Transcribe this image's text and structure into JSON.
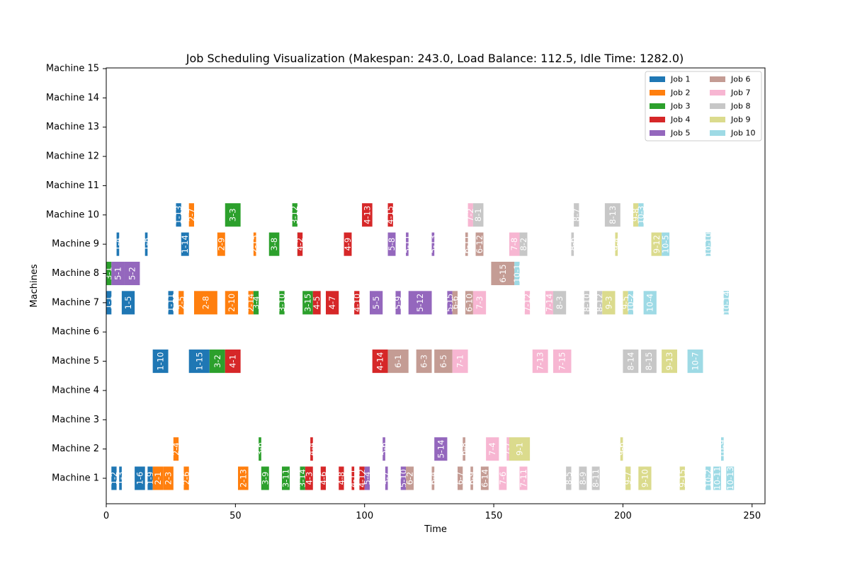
{
  "chart_data": {
    "type": "gantt",
    "title": "Job Scheduling Visualization (Makespan: 243.0, Load Balance: 112.5, Idle Time: 1282.0)",
    "xlabel": "Time",
    "ylabel": "Machines",
    "xlim": [
      0,
      255
    ],
    "xticks": [
      0,
      50,
      100,
      150,
      200,
      250
    ],
    "machines": [
      "Machine 1",
      "Machine 2",
      "Machine 3",
      "Machine 4",
      "Machine 5",
      "Machine 6",
      "Machine 7",
      "Machine 8",
      "Machine 9",
      "Machine 10",
      "Machine 11",
      "Machine 12",
      "Machine 13",
      "Machine 14",
      "Machine 15"
    ],
    "legend_position": "top-right",
    "jobs": [
      {
        "name": "Job 1",
        "color": "#1f77b4"
      },
      {
        "name": "Job 2",
        "color": "#ff7f0e"
      },
      {
        "name": "Job 3",
        "color": "#2ca02c"
      },
      {
        "name": "Job 4",
        "color": "#d62728"
      },
      {
        "name": "Job 5",
        "color": "#9467bd"
      },
      {
        "name": "Job 6",
        "color": "#c49c94"
      },
      {
        "name": "Job 7",
        "color": "#f7b6d2"
      },
      {
        "name": "Job 8",
        "color": "#c7c7c7"
      },
      {
        "name": "Job 9",
        "color": "#dbdb8d"
      },
      {
        "name": "Job 10",
        "color": "#9edae5"
      }
    ],
    "tasks": [
      {
        "machine": 1,
        "job": 1,
        "start": 2,
        "end": 4,
        "label": "1-2"
      },
      {
        "machine": 1,
        "job": 1,
        "start": 5,
        "end": 6,
        "label": "1-3"
      },
      {
        "machine": 1,
        "job": 1,
        "start": 11,
        "end": 15,
        "label": "1-6"
      },
      {
        "machine": 1,
        "job": 1,
        "start": 16,
        "end": 18,
        "label": "1-9"
      },
      {
        "machine": 1,
        "job": 2,
        "start": 18,
        "end": 22,
        "label": "2-1"
      },
      {
        "machine": 1,
        "job": 2,
        "start": 22,
        "end": 26,
        "label": "2-3"
      },
      {
        "machine": 1,
        "job": 2,
        "start": 30,
        "end": 32,
        "label": "2-6"
      },
      {
        "machine": 1,
        "job": 2,
        "start": 51,
        "end": 55,
        "label": "2-13"
      },
      {
        "machine": 1,
        "job": 3,
        "start": 60,
        "end": 63,
        "label": "3-9"
      },
      {
        "machine": 1,
        "job": 3,
        "start": 68,
        "end": 71,
        "label": "3-11"
      },
      {
        "machine": 1,
        "job": 3,
        "start": 75,
        "end": 77,
        "label": "3-14"
      },
      {
        "machine": 1,
        "job": 4,
        "start": 77,
        "end": 80,
        "label": "4-3"
      },
      {
        "machine": 1,
        "job": 4,
        "start": 83,
        "end": 85,
        "label": "4-6"
      },
      {
        "machine": 1,
        "job": 4,
        "start": 90,
        "end": 92,
        "label": "4-8"
      },
      {
        "machine": 1,
        "job": 4,
        "start": 95,
        "end": 96,
        "label": "4-11"
      },
      {
        "machine": 1,
        "job": 4,
        "start": 98,
        "end": 100,
        "label": "4-12"
      },
      {
        "machine": 1,
        "job": 5,
        "start": 100,
        "end": 102,
        "label": "5-4"
      },
      {
        "machine": 1,
        "job": 5,
        "start": 108,
        "end": 109,
        "label": "5-7"
      },
      {
        "machine": 1,
        "job": 5,
        "start": 114,
        "end": 116,
        "label": "5-10"
      },
      {
        "machine": 1,
        "job": 6,
        "start": 116,
        "end": 119,
        "label": "6-2"
      },
      {
        "machine": 1,
        "job": 6,
        "start": 126,
        "end": 127,
        "label": "6-4"
      },
      {
        "machine": 1,
        "job": 6,
        "start": 136,
        "end": 138,
        "label": "6-7"
      },
      {
        "machine": 1,
        "job": 6,
        "start": 141,
        "end": 142,
        "label": "6-9"
      },
      {
        "machine": 1,
        "job": 6,
        "start": 145,
        "end": 148,
        "label": "6-14"
      },
      {
        "machine": 1,
        "job": 7,
        "start": 152,
        "end": 155,
        "label": "7-6"
      },
      {
        "machine": 1,
        "job": 7,
        "start": 160,
        "end": 163,
        "label": "7-11"
      },
      {
        "machine": 1,
        "job": 8,
        "start": 178,
        "end": 180,
        "label": "8-5"
      },
      {
        "machine": 1,
        "job": 8,
        "start": 183,
        "end": 186,
        "label": "8-9"
      },
      {
        "machine": 1,
        "job": 8,
        "start": 188,
        "end": 191,
        "label": "8-11"
      },
      {
        "machine": 1,
        "job": 9,
        "start": 201,
        "end": 203,
        "label": "9-7"
      },
      {
        "machine": 1,
        "job": 9,
        "start": 206,
        "end": 211,
        "label": "9-10"
      },
      {
        "machine": 1,
        "job": 9,
        "start": 222,
        "end": 224,
        "label": "9-15"
      },
      {
        "machine": 1,
        "job": 10,
        "start": 232,
        "end": 234,
        "label": "10-2"
      },
      {
        "machine": 1,
        "job": 10,
        "start": 235,
        "end": 238,
        "label": "10-11"
      },
      {
        "machine": 1,
        "job": 10,
        "start": 240,
        "end": 243,
        "label": "10-13"
      },
      {
        "machine": 2,
        "job": 2,
        "start": 26,
        "end": 28,
        "label": "2-4"
      },
      {
        "machine": 2,
        "job": 3,
        "start": 59,
        "end": 60,
        "label": "3-6"
      },
      {
        "machine": 2,
        "job": 4,
        "start": 79,
        "end": 80,
        "label": "4-4"
      },
      {
        "machine": 2,
        "job": 5,
        "start": 107,
        "end": 108,
        "label": "5-6"
      },
      {
        "machine": 2,
        "job": 5,
        "start": 127,
        "end": 132,
        "label": "5-14"
      },
      {
        "machine": 2,
        "job": 6,
        "start": 138,
        "end": 139,
        "label": "6-8"
      },
      {
        "machine": 2,
        "job": 7,
        "start": 147,
        "end": 152,
        "label": "7-4"
      },
      {
        "machine": 2,
        "job": 7,
        "start": 155,
        "end": 156,
        "label": "7-7"
      },
      {
        "machine": 2,
        "job": 9,
        "start": 156,
        "end": 164,
        "label": "9-1"
      },
      {
        "machine": 2,
        "job": 9,
        "start": 199,
        "end": 200,
        "label": "9-6"
      },
      {
        "machine": 2,
        "job": 10,
        "start": 238,
        "end": 239,
        "label": "10-9"
      },
      {
        "machine": 5,
        "job": 1,
        "start": 18,
        "end": 24,
        "label": "1-10"
      },
      {
        "machine": 5,
        "job": 1,
        "start": 32,
        "end": 40,
        "label": "1-15"
      },
      {
        "machine": 5,
        "job": 3,
        "start": 40,
        "end": 46,
        "label": "3-2"
      },
      {
        "machine": 5,
        "job": 4,
        "start": 46,
        "end": 52,
        "label": "4-1"
      },
      {
        "machine": 5,
        "job": 4,
        "start": 103,
        "end": 109,
        "label": "4-14"
      },
      {
        "machine": 5,
        "job": 6,
        "start": 109,
        "end": 117,
        "label": "6-1"
      },
      {
        "machine": 5,
        "job": 6,
        "start": 120,
        "end": 126,
        "label": "6-3"
      },
      {
        "machine": 5,
        "job": 6,
        "start": 127,
        "end": 134,
        "label": "6-5"
      },
      {
        "machine": 5,
        "job": 7,
        "start": 134,
        "end": 140,
        "label": "7-1"
      },
      {
        "machine": 5,
        "job": 7,
        "start": 165,
        "end": 171,
        "label": "7-13"
      },
      {
        "machine": 5,
        "job": 7,
        "start": 173,
        "end": 180,
        "label": "7-15"
      },
      {
        "machine": 5,
        "job": 8,
        "start": 200,
        "end": 206,
        "label": "8-14"
      },
      {
        "machine": 5,
        "job": 8,
        "start": 207,
        "end": 213,
        "label": "8-15"
      },
      {
        "machine": 5,
        "job": 9,
        "start": 215,
        "end": 221,
        "label": "9-13"
      },
      {
        "machine": 5,
        "job": 10,
        "start": 225,
        "end": 231,
        "label": "10-7"
      },
      {
        "machine": 7,
        "job": 1,
        "start": 0,
        "end": 2,
        "label": "1-1"
      },
      {
        "machine": 7,
        "job": 1,
        "start": 6,
        "end": 11,
        "label": "1-5"
      },
      {
        "machine": 7,
        "job": 1,
        "start": 24,
        "end": 26,
        "label": "1-11"
      },
      {
        "machine": 7,
        "job": 2,
        "start": 28,
        "end": 30,
        "label": "2-5"
      },
      {
        "machine": 7,
        "job": 2,
        "start": 34,
        "end": 43,
        "label": "2-8"
      },
      {
        "machine": 7,
        "job": 2,
        "start": 46,
        "end": 51,
        "label": "2-10"
      },
      {
        "machine": 7,
        "job": 2,
        "start": 55,
        "end": 57,
        "label": "2-14"
      },
      {
        "machine": 7,
        "job": 3,
        "start": 57,
        "end": 59,
        "label": "3-4"
      },
      {
        "machine": 7,
        "job": 3,
        "start": 67,
        "end": 69,
        "label": "3-10"
      },
      {
        "machine": 7,
        "job": 3,
        "start": 76,
        "end": 80,
        "label": "3-15"
      },
      {
        "machine": 7,
        "job": 4,
        "start": 80,
        "end": 83,
        "label": "4-5"
      },
      {
        "machine": 7,
        "job": 4,
        "start": 85,
        "end": 90,
        "label": "4-7"
      },
      {
        "machine": 7,
        "job": 4,
        "start": 96,
        "end": 98,
        "label": "4-10"
      },
      {
        "machine": 7,
        "job": 5,
        "start": 102,
        "end": 107,
        "label": "5-5"
      },
      {
        "machine": 7,
        "job": 5,
        "start": 112,
        "end": 114,
        "label": "5-9"
      },
      {
        "machine": 7,
        "job": 5,
        "start": 117,
        "end": 126,
        "label": "5-12"
      },
      {
        "machine": 7,
        "job": 5,
        "start": 132,
        "end": 134,
        "label": "5-15"
      },
      {
        "machine": 7,
        "job": 6,
        "start": 134,
        "end": 136,
        "label": "6-6"
      },
      {
        "machine": 7,
        "job": 6,
        "start": 139,
        "end": 142,
        "label": "6-10"
      },
      {
        "machine": 7,
        "job": 7,
        "start": 142,
        "end": 147,
        "label": "7-3"
      },
      {
        "machine": 7,
        "job": 7,
        "start": 162,
        "end": 164,
        "label": "7-12"
      },
      {
        "machine": 7,
        "job": 7,
        "start": 170,
        "end": 173,
        "label": "7-14"
      },
      {
        "machine": 7,
        "job": 8,
        "start": 173,
        "end": 178,
        "label": "8-3"
      },
      {
        "machine": 7,
        "job": 8,
        "start": 185,
        "end": 187,
        "label": "8-10"
      },
      {
        "machine": 7,
        "job": 8,
        "start": 190,
        "end": 192,
        "label": "8-12"
      },
      {
        "machine": 7,
        "job": 9,
        "start": 192,
        "end": 197,
        "label": "9-3"
      },
      {
        "machine": 7,
        "job": 9,
        "start": 200,
        "end": 202,
        "label": "9-5"
      },
      {
        "machine": 7,
        "job": 10,
        "start": 202,
        "end": 204,
        "label": "10-2"
      },
      {
        "machine": 7,
        "job": 10,
        "start": 208,
        "end": 213,
        "label": "10-4"
      },
      {
        "machine": 7,
        "job": 10,
        "start": 239,
        "end": 241,
        "label": "10-14"
      },
      {
        "machine": 8,
        "job": 3,
        "start": 0,
        "end": 2,
        "label": "3-1"
      },
      {
        "machine": 8,
        "job": 5,
        "start": 2,
        "end": 7,
        "label": "5-1"
      },
      {
        "machine": 8,
        "job": 5,
        "start": 7,
        "end": 13,
        "label": "5-2"
      },
      {
        "machine": 8,
        "job": 6,
        "start": 149,
        "end": 158,
        "label": "6-15"
      },
      {
        "machine": 8,
        "job": 10,
        "start": 158,
        "end": 160,
        "label": "10-1"
      },
      {
        "machine": 9,
        "job": 1,
        "start": 4,
        "end": 5,
        "label": "1-4"
      },
      {
        "machine": 9,
        "job": 1,
        "start": 15,
        "end": 16,
        "label": "1-8"
      },
      {
        "machine": 9,
        "job": 1,
        "start": 29,
        "end": 32,
        "label": "1-14"
      },
      {
        "machine": 9,
        "job": 2,
        "start": 43,
        "end": 46,
        "label": "2-9"
      },
      {
        "machine": 9,
        "job": 2,
        "start": 57,
        "end": 58,
        "label": "2-15"
      },
      {
        "machine": 9,
        "job": 3,
        "start": 63,
        "end": 67,
        "label": "3-8"
      },
      {
        "machine": 9,
        "job": 3,
        "start": 74,
        "end": 75,
        "label": "3-13"
      },
      {
        "machine": 9,
        "job": 4,
        "start": 74,
        "end": 76,
        "label": "4-2"
      },
      {
        "machine": 9,
        "job": 4,
        "start": 92,
        "end": 95,
        "label": "4-9"
      },
      {
        "machine": 9,
        "job": 5,
        "start": 109,
        "end": 112,
        "label": "5-8"
      },
      {
        "machine": 9,
        "job": 5,
        "start": 116,
        "end": 117,
        "label": "5-11"
      },
      {
        "machine": 9,
        "job": 5,
        "start": 126,
        "end": 127,
        "label": "5-13"
      },
      {
        "machine": 9,
        "job": 6,
        "start": 139,
        "end": 140,
        "label": "6-11"
      },
      {
        "machine": 9,
        "job": 6,
        "start": 143,
        "end": 146,
        "label": "6-12"
      },
      {
        "machine": 9,
        "job": 7,
        "start": 156,
        "end": 160,
        "label": "7-8"
      },
      {
        "machine": 9,
        "job": 8,
        "start": 160,
        "end": 163,
        "label": "8-2"
      },
      {
        "machine": 9,
        "job": 8,
        "start": 180,
        "end": 181,
        "label": "8-6"
      },
      {
        "machine": 9,
        "job": 9,
        "start": 197,
        "end": 198,
        "label": "9-4"
      },
      {
        "machine": 9,
        "job": 9,
        "start": 211,
        "end": 215,
        "label": "9-12"
      },
      {
        "machine": 9,
        "job": 10,
        "start": 215,
        "end": 218,
        "label": "10-5"
      },
      {
        "machine": 9,
        "job": 10,
        "start": 232,
        "end": 234,
        "label": "10-10"
      },
      {
        "machine": 10,
        "job": 1,
        "start": 27,
        "end": 29,
        "label": "1-13"
      },
      {
        "machine": 10,
        "job": 2,
        "start": 32,
        "end": 34,
        "label": "2-7"
      },
      {
        "machine": 10,
        "job": 3,
        "start": 46,
        "end": 52,
        "label": "3-3"
      },
      {
        "machine": 10,
        "job": 3,
        "start": 72,
        "end": 74,
        "label": "3-12"
      },
      {
        "machine": 10,
        "job": 4,
        "start": 99,
        "end": 103,
        "label": "4-13"
      },
      {
        "machine": 10,
        "job": 4,
        "start": 109,
        "end": 111,
        "label": "4-15"
      },
      {
        "machine": 10,
        "job": 7,
        "start": 140,
        "end": 142,
        "label": "7-2"
      },
      {
        "machine": 10,
        "job": 8,
        "start": 142,
        "end": 146,
        "label": "8-1"
      },
      {
        "machine": 10,
        "job": 8,
        "start": 181,
        "end": 183,
        "label": "8-7"
      },
      {
        "machine": 10,
        "job": 8,
        "start": 193,
        "end": 199,
        "label": "8-13"
      },
      {
        "machine": 10,
        "job": 9,
        "start": 204,
        "end": 206,
        "label": "9-8"
      },
      {
        "machine": 10,
        "job": 10,
        "start": 206,
        "end": 208,
        "label": "10-3"
      }
    ]
  }
}
